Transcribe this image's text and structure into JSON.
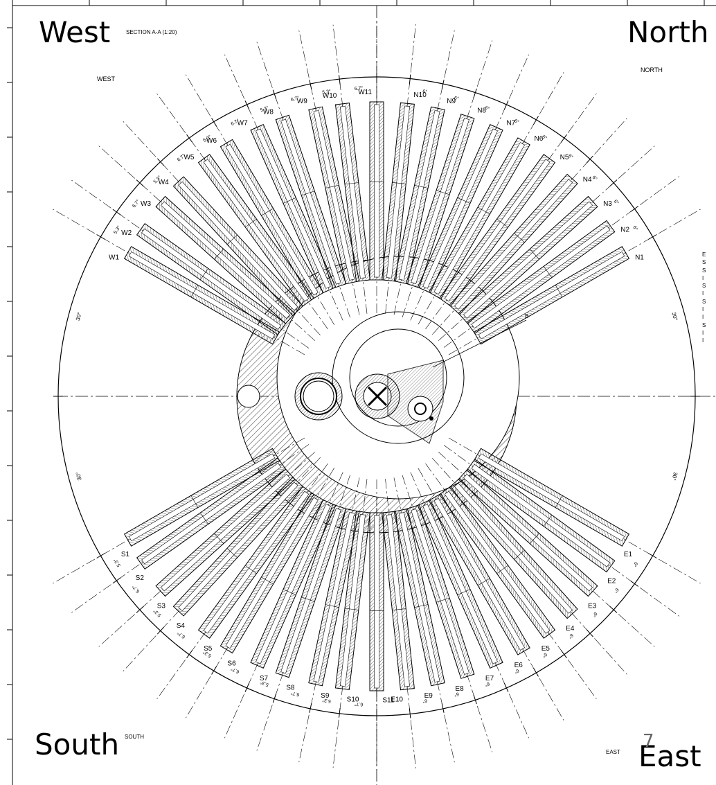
{
  "corners": {
    "west": "West",
    "north": "North",
    "south": "South",
    "east": "East"
  },
  "small_labels": {
    "section": "SECTION A-A (1:20)",
    "west": "WEST",
    "north": "NORTH",
    "south": "SOUTH",
    "east": "EAST",
    "detail": "B"
  },
  "page_number": "7",
  "notes": [
    "E",
    "S",
    "S",
    "I",
    "S",
    "I",
    "S",
    "I",
    "I",
    "S",
    "I",
    "I"
  ],
  "angles": {
    "west_a": "5.3°",
    "west_b": "6.7°",
    "north": "6°",
    "big": "30°"
  },
  "channels": {
    "west": [
      "W1",
      "W2",
      "W3",
      "W4",
      "W5",
      "W6",
      "W7",
      "W8",
      "W9",
      "W10",
      "W11"
    ],
    "north": [
      "N1",
      "N2",
      "N3",
      "N4",
      "N5",
      "N6",
      "N7",
      "N8",
      "N9",
      "N10"
    ],
    "south": [
      "S1",
      "S2",
      "S3",
      "S4",
      "S5",
      "S6",
      "S7",
      "S8",
      "S9",
      "S10",
      "S11"
    ],
    "east": [
      "E1",
      "E2",
      "E3",
      "E4",
      "E5",
      "E6",
      "E7",
      "E8",
      "E9",
      "E10"
    ]
  }
}
